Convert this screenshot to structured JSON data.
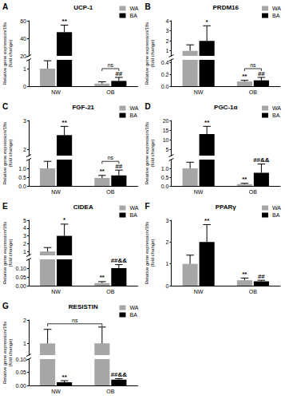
{
  "chart_data": [
    {
      "panel": "A",
      "type": "bar",
      "title": "UCP-1",
      "y_label": [
        "Relative gene expression/18s",
        "(fold change)"
      ],
      "categories": [
        "NW",
        "OB"
      ],
      "ylim": [
        0,
        60
      ],
      "ybreak": [
        1.5,
        20
      ],
      "yticks": [
        0,
        1,
        20,
        40,
        60
      ],
      "grid": false,
      "legend": "upper right",
      "series": [
        {
          "name": "WA",
          "color": "#a6a6a6",
          "values": [
            1.0,
            0.15
          ],
          "errors": [
            0.45,
            0.1
          ],
          "annotations": [
            null,
            null
          ]
        },
        {
          "name": "BA",
          "color": "#000000",
          "values": [
            47,
            0.3
          ],
          "errors": [
            8,
            0.2
          ],
          "annotations": [
            "**",
            "##"
          ]
        }
      ],
      "brackets": [
        {
          "category": "OB",
          "text": "ns"
        }
      ]
    },
    {
      "panel": "B",
      "type": "bar",
      "title": "PRDM16",
      "y_label": [
        "Relative gene expression/18s",
        "(fold change)"
      ],
      "categories": [
        "NW",
        "OB"
      ],
      "ylim": [
        0,
        4
      ],
      "ybreak": [
        0.45,
        0.5
      ],
      "yticks": [
        {
          "value": 0,
          "label": "0.0"
        },
        0.2,
        0.4,
        1,
        2,
        3,
        4
      ],
      "grid": false,
      "legend": "upper right",
      "series": [
        {
          "name": "WA",
          "color": "#a6a6a6",
          "values": [
            1.0,
            0.08
          ],
          "errors": [
            0.6,
            0.02
          ],
          "annotations": [
            null,
            "**"
          ]
        },
        {
          "name": "BA",
          "color": "#000000",
          "values": [
            2.0,
            0.1
          ],
          "errors": [
            1.5,
            0.05
          ],
          "annotations": [
            "*",
            "##"
          ]
        }
      ],
      "brackets": [
        {
          "category": "OB",
          "text": "ns"
        }
      ]
    },
    {
      "panel": "C",
      "type": "bar",
      "title": "FGF-21",
      "y_label": [
        "Relative gene expression/18s",
        "(fold change)"
      ],
      "categories": [
        "NW",
        "OB"
      ],
      "ylim": [
        0,
        3
      ],
      "ybreak": [
        1.5,
        1.8
      ],
      "yticks": [
        {
          "value": 0,
          "label": "0.0"
        },
        0.5,
        {
          "value": 1,
          "label": "1.0"
        },
        2,
        3
      ],
      "grid": false,
      "legend": "upper right",
      "series": [
        {
          "name": "WA",
          "color": "#a6a6a6",
          "values": [
            1.0,
            0.45
          ],
          "errors": [
            0.4,
            0.15
          ],
          "annotations": [
            null,
            "**"
          ]
        },
        {
          "name": "BA",
          "color": "#000000",
          "values": [
            2.5,
            0.6
          ],
          "errors": [
            0.3,
            0.3
          ],
          "annotations": [
            "**",
            "##"
          ]
        }
      ],
      "brackets": [
        {
          "category": "OB",
          "text": "ns"
        }
      ]
    },
    {
      "panel": "D",
      "type": "bar",
      "title": "PGC-1α",
      "y_label": [
        "Relative gene expression/18s",
        "(fold change)"
      ],
      "categories": [
        "NW",
        "OB"
      ],
      "ylim": [
        0,
        20
      ],
      "ybreak": [
        1.5,
        2
      ],
      "yticks": [
        {
          "value": 0,
          "label": "0.0"
        },
        0.5,
        {
          "value": 1,
          "label": "1.0"
        },
        5,
        10,
        15,
        20
      ],
      "grid": false,
      "legend": "upper right",
      "series": [
        {
          "name": "WA",
          "color": "#a6a6a6",
          "values": [
            1.0,
            0.1
          ],
          "errors": [
            0.35,
            0.05
          ],
          "annotations": [
            null,
            "**"
          ]
        },
        {
          "name": "BA",
          "color": "#000000",
          "values": [
            13,
            0.75
          ],
          "errors": [
            4,
            0.5
          ],
          "annotations": [
            "**",
            "##&&"
          ]
        }
      ]
    },
    {
      "panel": "E",
      "type": "bar",
      "title": "CIDEA",
      "y_label": [
        "Relative gene expression/18s",
        "(fold change)"
      ],
      "categories": [
        "NW",
        "OB"
      ],
      "ylim": [
        0,
        5
      ],
      "ybreak": [
        0.15,
        0.5
      ],
      "yticks": [
        {
          "value": 0,
          "label": "0.00"
        },
        0.05,
        {
          "value": 0.1,
          "label": "0.10"
        },
        1,
        2,
        3,
        4,
        5
      ],
      "grid": false,
      "legend": "upper right",
      "series": [
        {
          "name": "WA",
          "color": "#a6a6a6",
          "values": [
            1.0,
            0.015
          ],
          "errors": [
            0.5,
            0.008
          ],
          "annotations": [
            null,
            "**"
          ]
        },
        {
          "name": "BA",
          "color": "#000000",
          "values": [
            3.0,
            0.1
          ],
          "errors": [
            1.5,
            0.02
          ],
          "annotations": [
            "*",
            "##&&"
          ]
        }
      ]
    },
    {
      "panel": "F",
      "type": "bar",
      "title": "PPARγ",
      "y_label": [
        "Relative gene expression/18s",
        "(fold change)"
      ],
      "categories": [
        "NW",
        "OB"
      ],
      "ylim": [
        0,
        3
      ],
      "yticks": [
        0,
        1,
        2,
        3
      ],
      "grid": false,
      "legend": "upper right",
      "series": [
        {
          "name": "WA",
          "color": "#a6a6a6",
          "values": [
            1.0,
            0.25
          ],
          "errors": [
            0.4,
            0.1
          ],
          "annotations": [
            null,
            "**"
          ]
        },
        {
          "name": "BA",
          "color": "#000000",
          "values": [
            2.0,
            0.2
          ],
          "errors": [
            0.8,
            0.05
          ],
          "annotations": [
            "**",
            "##"
          ]
        }
      ]
    },
    {
      "panel": "G",
      "type": "bar",
      "title": "RESISTIN",
      "y_label": [
        "Relative gene expression/18s",
        "(fold change)"
      ],
      "categories": [
        "NW",
        "OB"
      ],
      "ylim": [
        0,
        2
      ],
      "ybreak": [
        0.1,
        0.5
      ],
      "yticks": [
        {
          "value": 0,
          "label": "0.00"
        },
        0.05,
        {
          "value": 0.1,
          "label": "0.10"
        },
        1,
        2
      ],
      "grid": false,
      "legend": "upper right",
      "series": [
        {
          "name": "WA",
          "color": "#a6a6a6",
          "values": [
            1.0,
            1.0
          ],
          "errors": [
            0.6,
            0.7
          ],
          "annotations": [
            null,
            null
          ]
        },
        {
          "name": "BA",
          "color": "#000000",
          "values": [
            0.012,
            0.022
          ],
          "errors": [
            0.006,
            0.004
          ],
          "annotations": [
            "**",
            "##&&"
          ]
        }
      ],
      "brackets": [
        {
          "series": "WA",
          "text": "ns"
        }
      ]
    }
  ]
}
